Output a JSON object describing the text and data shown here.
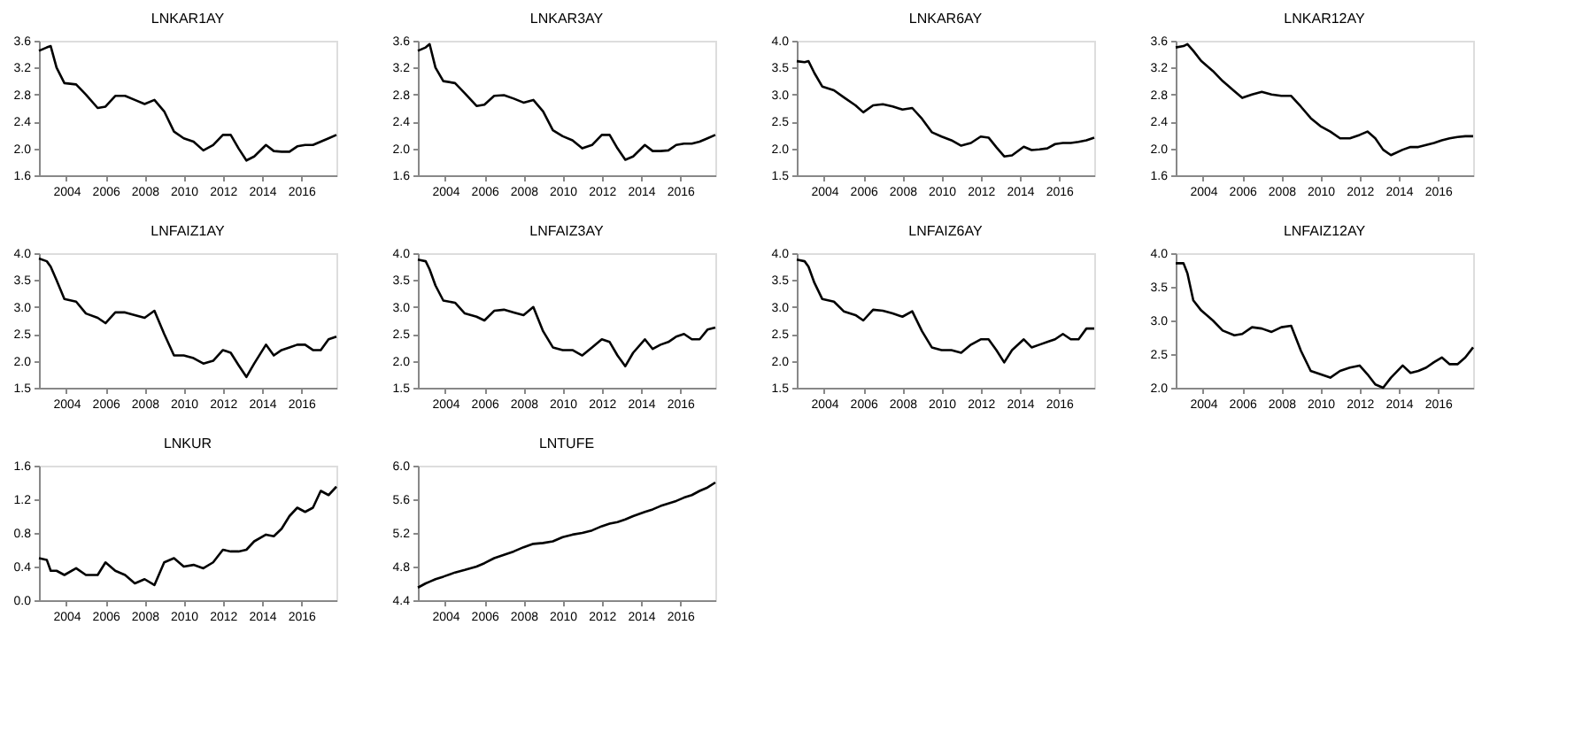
{
  "chart_data": [
    {
      "type": "line",
      "title": "LNKAR1AY",
      "color": "#000000",
      "xlim": [
        2002.6,
        2017.8
      ],
      "xticks": [
        2004,
        2006,
        2008,
        2010,
        2012,
        2014,
        2016
      ],
      "ylim": [
        1.6,
        3.6
      ],
      "yticks": [
        1.6,
        {
          "value": 2,
          "label": "2.0"
        },
        2.4,
        2.8,
        3.2,
        3.6
      ],
      "grid": false,
      "x": [
        2002.6,
        2003.0,
        2003.2,
        2003.5,
        2003.9,
        2004.5,
        2005.0,
        2005.6,
        2006.0,
        2006.5,
        2007.0,
        2007.5,
        2008.0,
        2008.5,
        2009.0,
        2009.5,
        2010.0,
        2010.5,
        2011.0,
        2011.5,
        2012.0,
        2012.4,
        2012.8,
        2013.2,
        2013.6,
        2014.2,
        2014.6,
        2015.0,
        2015.4,
        2015.8,
        2016.2,
        2016.6,
        2017.0,
        2017.4,
        2017.8
      ],
      "values": [
        3.45,
        3.5,
        3.52,
        3.2,
        2.97,
        2.95,
        2.8,
        2.6,
        2.62,
        2.78,
        2.78,
        2.72,
        2.66,
        2.72,
        2.55,
        2.25,
        2.15,
        2.1,
        1.97,
        2.05,
        2.2,
        2.2,
        2.0,
        1.82,
        1.88,
        2.05,
        1.96,
        1.95,
        1.95,
        2.03,
        2.05,
        2.05,
        2.1,
        2.15,
        2.2
      ]
    },
    {
      "type": "line",
      "title": "LNKAR3AY",
      "color": "#000000",
      "xlim": [
        2002.6,
        2017.8
      ],
      "xticks": [
        2004,
        2006,
        2008,
        2010,
        2012,
        2014,
        2016
      ],
      "ylim": [
        1.6,
        3.6
      ],
      "yticks": [
        1.6,
        {
          "value": 2,
          "label": "2.0"
        },
        2.4,
        2.8,
        3.2,
        3.6
      ],
      "grid": false,
      "x": [
        2002.6,
        2003.0,
        2003.2,
        2003.5,
        2003.9,
        2004.5,
        2005.0,
        2005.6,
        2006.0,
        2006.5,
        2007.0,
        2007.5,
        2008.0,
        2008.5,
        2009.0,
        2009.5,
        2010.0,
        2010.5,
        2011.0,
        2011.5,
        2012.0,
        2012.4,
        2012.8,
        2013.2,
        2013.6,
        2014.2,
        2014.6,
        2015.0,
        2015.4,
        2015.8,
        2016.2,
        2016.6,
        2017.0,
        2017.4,
        2017.8
      ],
      "values": [
        3.45,
        3.5,
        3.55,
        3.2,
        3.0,
        2.97,
        2.82,
        2.63,
        2.65,
        2.78,
        2.79,
        2.74,
        2.68,
        2.72,
        2.55,
        2.27,
        2.18,
        2.12,
        2.0,
        2.05,
        2.2,
        2.2,
        2.0,
        1.83,
        1.88,
        2.05,
        1.96,
        1.96,
        1.97,
        2.05,
        2.07,
        2.07,
        2.1,
        2.15,
        2.2
      ]
    },
    {
      "type": "line",
      "title": "LNKAR6AY",
      "color": "#000000",
      "xlim": [
        2002.6,
        2017.8
      ],
      "xticks": [
        2004,
        2006,
        2008,
        2010,
        2012,
        2014,
        2016
      ],
      "ylim": [
        1.5,
        4.0
      ],
      "yticks": [
        1.5,
        {
          "value": 2,
          "label": "2.0"
        },
        2.5,
        {
          "value": 3,
          "label": "3.0"
        },
        3.5,
        {
          "value": 4,
          "label": "4.0"
        }
      ],
      "grid": false,
      "x": [
        2002.6,
        2003.0,
        2003.2,
        2003.5,
        2003.9,
        2004.5,
        2005.0,
        2005.6,
        2006.0,
        2006.5,
        2007.0,
        2007.5,
        2008.0,
        2008.5,
        2009.0,
        2009.5,
        2010.0,
        2010.5,
        2011.0,
        2011.5,
        2012.0,
        2012.4,
        2012.8,
        2013.2,
        2013.6,
        2014.2,
        2014.6,
        2015.0,
        2015.4,
        2015.8,
        2016.2,
        2016.6,
        2017.0,
        2017.4,
        2017.8
      ],
      "values": [
        3.62,
        3.6,
        3.62,
        3.4,
        3.15,
        3.08,
        2.95,
        2.8,
        2.67,
        2.8,
        2.82,
        2.78,
        2.72,
        2.75,
        2.55,
        2.3,
        2.22,
        2.15,
        2.05,
        2.1,
        2.22,
        2.2,
        2.02,
        1.85,
        1.87,
        2.03,
        1.97,
        1.98,
        2.0,
        2.08,
        2.1,
        2.1,
        2.12,
        2.15,
        2.2
      ]
    },
    {
      "type": "line",
      "title": "LNKAR12AY",
      "color": "#000000",
      "xlim": [
        2002.6,
        2017.8
      ],
      "xticks": [
        2004,
        2006,
        2008,
        2010,
        2012,
        2014,
        2016
      ],
      "ylim": [
        1.6,
        3.6
      ],
      "yticks": [
        1.6,
        {
          "value": 2,
          "label": "2.0"
        },
        2.4,
        2.8,
        3.2,
        3.6
      ],
      "grid": false,
      "x": [
        2002.6,
        2003.0,
        2003.2,
        2003.5,
        2003.9,
        2004.5,
        2005.0,
        2005.6,
        2006.0,
        2006.5,
        2007.0,
        2007.5,
        2008.0,
        2008.5,
        2009.0,
        2009.5,
        2010.0,
        2010.5,
        2011.0,
        2011.5,
        2012.0,
        2012.4,
        2012.8,
        2013.2,
        2013.6,
        2014.2,
        2014.6,
        2015.0,
        2015.4,
        2015.8,
        2016.2,
        2016.6,
        2017.0,
        2017.4,
        2017.8
      ],
      "values": [
        3.5,
        3.52,
        3.55,
        3.45,
        3.3,
        3.15,
        3.0,
        2.85,
        2.75,
        2.8,
        2.84,
        2.8,
        2.78,
        2.78,
        2.62,
        2.45,
        2.33,
        2.25,
        2.15,
        2.15,
        2.2,
        2.25,
        2.15,
        1.98,
        1.9,
        1.98,
        2.02,
        2.02,
        2.05,
        2.08,
        2.12,
        2.15,
        2.17,
        2.18,
        2.18
      ]
    },
    {
      "type": "line",
      "title": "LNFAIZ1AY",
      "color": "#000000",
      "xlim": [
        2002.6,
        2017.8
      ],
      "xticks": [
        2004,
        2006,
        2008,
        2010,
        2012,
        2014,
        2016
      ],
      "ylim": [
        1.5,
        4.0
      ],
      "yticks": [
        1.5,
        {
          "value": 2,
          "label": "2.0"
        },
        2.5,
        {
          "value": 3,
          "label": "3.0"
        },
        3.5,
        {
          "value": 4,
          "label": "4.0"
        }
      ],
      "grid": false,
      "x": [
        2002.6,
        2003.0,
        2003.2,
        2003.5,
        2003.9,
        2004.5,
        2005.0,
        2005.6,
        2006.0,
        2006.5,
        2007.0,
        2007.5,
        2008.0,
        2008.5,
        2009.0,
        2009.5,
        2010.0,
        2010.5,
        2011.0,
        2011.5,
        2012.0,
        2012.4,
        2012.8,
        2013.2,
        2013.6,
        2014.2,
        2014.6,
        2015.0,
        2015.4,
        2015.8,
        2016.2,
        2016.6,
        2017.0,
        2017.4,
        2017.8
      ],
      "values": [
        3.9,
        3.85,
        3.75,
        3.5,
        3.15,
        3.1,
        2.88,
        2.8,
        2.7,
        2.9,
        2.9,
        2.85,
        2.8,
        2.93,
        2.5,
        2.1,
        2.1,
        2.05,
        1.95,
        2.0,
        2.2,
        2.15,
        1.92,
        1.7,
        1.95,
        2.3,
        2.1,
        2.2,
        2.25,
        2.3,
        2.3,
        2.2,
        2.2,
        2.4,
        2.45
      ]
    },
    {
      "type": "line",
      "title": "LNFAIZ3AY",
      "color": "#000000",
      "xlim": [
        2002.6,
        2017.8
      ],
      "xticks": [
        2004,
        2006,
        2008,
        2010,
        2012,
        2014,
        2016
      ],
      "ylim": [
        1.5,
        4.0
      ],
      "yticks": [
        1.5,
        {
          "value": 2,
          "label": "2.0"
        },
        2.5,
        {
          "value": 3,
          "label": "3.0"
        },
        3.5,
        {
          "value": 4,
          "label": "4.0"
        }
      ],
      "grid": false,
      "x": [
        2002.6,
        2003.0,
        2003.2,
        2003.5,
        2003.9,
        2004.5,
        2005.0,
        2005.6,
        2006.0,
        2006.5,
        2007.0,
        2007.5,
        2008.0,
        2008.5,
        2009.0,
        2009.5,
        2010.0,
        2010.5,
        2011.0,
        2011.5,
        2012.0,
        2012.4,
        2012.8,
        2013.2,
        2013.6,
        2014.2,
        2014.6,
        2015.0,
        2015.4,
        2015.8,
        2016.2,
        2016.6,
        2017.0,
        2017.4,
        2017.8
      ],
      "values": [
        3.88,
        3.85,
        3.7,
        3.4,
        3.12,
        3.08,
        2.88,
        2.82,
        2.75,
        2.93,
        2.95,
        2.9,
        2.85,
        3.0,
        2.55,
        2.25,
        2.2,
        2.2,
        2.1,
        2.25,
        2.4,
        2.35,
        2.1,
        1.9,
        2.15,
        2.4,
        2.22,
        2.3,
        2.35,
        2.45,
        2.5,
        2.4,
        2.4,
        2.58,
        2.62
      ]
    },
    {
      "type": "line",
      "title": "LNFAIZ6AY",
      "color": "#000000",
      "xlim": [
        2002.6,
        2017.8
      ],
      "xticks": [
        2004,
        2006,
        2008,
        2010,
        2012,
        2014,
        2016
      ],
      "ylim": [
        1.5,
        4.0
      ],
      "yticks": [
        1.5,
        {
          "value": 2,
          "label": "2.0"
        },
        2.5,
        {
          "value": 3,
          "label": "3.0"
        },
        3.5,
        {
          "value": 4,
          "label": "4.0"
        }
      ],
      "grid": false,
      "x": [
        2002.6,
        2003.0,
        2003.2,
        2003.5,
        2003.9,
        2004.5,
        2005.0,
        2005.6,
        2006.0,
        2006.5,
        2007.0,
        2007.5,
        2008.0,
        2008.5,
        2009.0,
        2009.5,
        2010.0,
        2010.5,
        2011.0,
        2011.5,
        2012.0,
        2012.4,
        2012.8,
        2013.2,
        2013.6,
        2014.2,
        2014.6,
        2015.0,
        2015.4,
        2015.8,
        2016.2,
        2016.6,
        2017.0,
        2017.4,
        2017.8
      ],
      "values": [
        3.88,
        3.85,
        3.75,
        3.45,
        3.15,
        3.1,
        2.92,
        2.85,
        2.75,
        2.95,
        2.93,
        2.88,
        2.82,
        2.92,
        2.55,
        2.25,
        2.2,
        2.2,
        2.15,
        2.3,
        2.4,
        2.4,
        2.2,
        1.97,
        2.2,
        2.4,
        2.25,
        2.3,
        2.35,
        2.4,
        2.5,
        2.4,
        2.4,
        2.6,
        2.6
      ]
    },
    {
      "type": "line",
      "title": "LNFAIZ12AY",
      "color": "#000000",
      "xlim": [
        2002.6,
        2017.8
      ],
      "xticks": [
        2004,
        2006,
        2008,
        2010,
        2012,
        2014,
        2016
      ],
      "ylim": [
        2.0,
        4.0
      ],
      "yticks": [
        {
          "value": 2,
          "label": "2.0"
        },
        2.5,
        {
          "value": 3,
          "label": "3.0"
        },
        3.5,
        {
          "value": 4,
          "label": "4.0"
        }
      ],
      "grid": false,
      "x": [
        2002.6,
        2003.0,
        2003.2,
        2003.5,
        2003.9,
        2004.5,
        2005.0,
        2005.6,
        2006.0,
        2006.5,
        2007.0,
        2007.5,
        2008.0,
        2008.5,
        2009.0,
        2009.5,
        2010.0,
        2010.5,
        2011.0,
        2011.5,
        2012.0,
        2012.4,
        2012.8,
        2013.2,
        2013.6,
        2014.2,
        2014.6,
        2015.0,
        2015.4,
        2015.8,
        2016.2,
        2016.6,
        2017.0,
        2017.4,
        2017.8
      ],
      "values": [
        3.85,
        3.85,
        3.7,
        3.3,
        3.15,
        3.0,
        2.85,
        2.78,
        2.8,
        2.9,
        2.88,
        2.83,
        2.9,
        2.92,
        2.55,
        2.25,
        2.2,
        2.15,
        2.25,
        2.3,
        2.33,
        2.2,
        2.05,
        2.0,
        2.15,
        2.33,
        2.22,
        2.25,
        2.3,
        2.38,
        2.45,
        2.35,
        2.35,
        2.45,
        2.6
      ]
    },
    {
      "type": "line",
      "title": "LNKUR",
      "color": "#000000",
      "xlim": [
        2002.6,
        2017.8
      ],
      "xticks": [
        2004,
        2006,
        2008,
        2010,
        2012,
        2014,
        2016
      ],
      "ylim": [
        0.0,
        1.6
      ],
      "yticks": [
        {
          "value": 0,
          "label": "0.0"
        },
        0.4,
        0.8,
        1.2,
        1.6
      ],
      "grid": false,
      "x": [
        2002.6,
        2003.0,
        2003.2,
        2003.5,
        2003.9,
        2004.5,
        2005.0,
        2005.6,
        2006.0,
        2006.5,
        2007.0,
        2007.5,
        2008.0,
        2008.5,
        2009.0,
        2009.5,
        2010.0,
        2010.5,
        2011.0,
        2011.5,
        2012.0,
        2012.4,
        2012.8,
        2013.2,
        2013.6,
        2014.2,
        2014.6,
        2015.0,
        2015.4,
        2015.8,
        2016.2,
        2016.6,
        2017.0,
        2017.4,
        2017.8
      ],
      "values": [
        0.5,
        0.48,
        0.35,
        0.35,
        0.3,
        0.38,
        0.3,
        0.3,
        0.45,
        0.35,
        0.3,
        0.2,
        0.25,
        0.18,
        0.45,
        0.5,
        0.4,
        0.42,
        0.38,
        0.45,
        0.6,
        0.58,
        0.58,
        0.6,
        0.7,
        0.78,
        0.76,
        0.85,
        1.0,
        1.1,
        1.05,
        1.1,
        1.3,
        1.25,
        1.35
      ]
    },
    {
      "type": "line",
      "title": "LNTUFE",
      "color": "#000000",
      "xlim": [
        2002.6,
        2017.8
      ],
      "xticks": [
        2004,
        2006,
        2008,
        2010,
        2012,
        2014,
        2016
      ],
      "ylim": [
        4.4,
        6.0
      ],
      "yticks": [
        4.4,
        4.8,
        5.2,
        5.6,
        {
          "value": 6,
          "label": "6.0"
        }
      ],
      "grid": false,
      "x": [
        2002.6,
        2003.0,
        2003.2,
        2003.5,
        2003.9,
        2004.5,
        2005.0,
        2005.6,
        2006.0,
        2006.5,
        2007.0,
        2007.5,
        2008.0,
        2008.5,
        2009.0,
        2009.5,
        2010.0,
        2010.5,
        2011.0,
        2011.5,
        2012.0,
        2012.4,
        2012.8,
        2013.2,
        2013.6,
        2014.2,
        2014.6,
        2015.0,
        2015.4,
        2015.8,
        2016.2,
        2016.6,
        2017.0,
        2017.4,
        2017.8
      ],
      "values": [
        4.55,
        4.6,
        4.62,
        4.65,
        4.68,
        4.73,
        4.76,
        4.8,
        4.84,
        4.9,
        4.94,
        4.98,
        5.03,
        5.07,
        5.08,
        5.1,
        5.15,
        5.18,
        5.2,
        5.23,
        5.28,
        5.31,
        5.33,
        5.36,
        5.4,
        5.45,
        5.48,
        5.52,
        5.55,
        5.58,
        5.62,
        5.65,
        5.7,
        5.74,
        5.8
      ]
    }
  ]
}
